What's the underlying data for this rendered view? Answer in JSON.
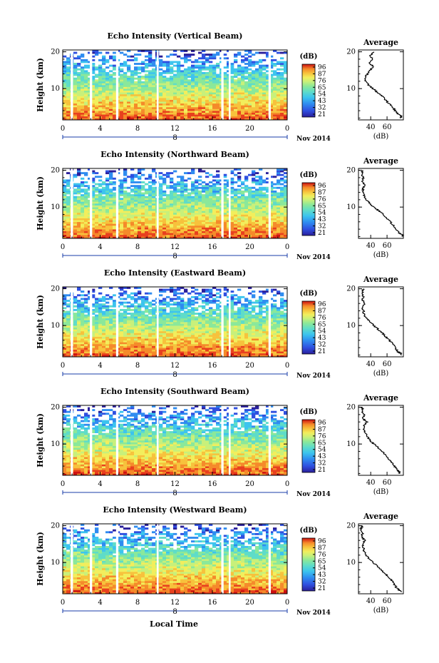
{
  "figure": {
    "x_label": "Local Time",
    "date_label": "Nov 2014",
    "y_label": "Height (km)",
    "colorbar_unit": "(dB)",
    "profile_title": "Average",
    "profile_xlabel": "(dB)"
  },
  "chart_data": [
    {
      "type": "heatmap",
      "title": "Echo Intensity (Vertical Beam)",
      "xlabel": "Local Time",
      "ylabel": "Height (km)",
      "x_ticks": [
        "0",
        "4",
        "8",
        "12",
        "16",
        "20",
        "0"
      ],
      "day_marker": "8",
      "y_ticks": [
        "10",
        "20"
      ],
      "xlim": [
        0,
        24
      ],
      "ylim": [
        1.5,
        20.5
      ],
      "colorbar": {
        "unit": "(dB)",
        "ticks": [
          "96",
          "87",
          "76",
          "65",
          "54",
          "43",
          "32",
          "21"
        ]
      },
      "data_gaps_hours": [
        [
          0.85,
          1.1
        ],
        [
          2.9,
          3.15
        ],
        [
          5.7,
          5.95
        ],
        [
          10.05,
          10.25
        ],
        [
          16.95,
          17.2
        ],
        [
          17.75,
          17.95
        ],
        [
          22.0,
          22.25
        ]
      ],
      "profile": {
        "title": "Average",
        "xlabel": "(dB)",
        "x_ticks": [
          "40",
          "60"
        ],
        "y_ticks": [
          "10",
          "20"
        ],
        "xlim": [
          25,
          80
        ],
        "ylim": [
          1.5,
          20.5
        ],
        "height_km": [
          2,
          2.5,
          3,
          4,
          5,
          6,
          7,
          8,
          9,
          10,
          11,
          12,
          13,
          14,
          15,
          16,
          17,
          18,
          19,
          20
        ],
        "db": [
          76,
          78,
          74,
          70,
          67,
          62,
          58,
          54,
          48,
          43,
          37,
          34,
          33,
          36,
          39,
          43,
          38,
          42,
          40,
          44
        ]
      }
    },
    {
      "type": "heatmap",
      "title": "Echo Intensity (Northward Beam)",
      "xlabel": "Local Time",
      "ylabel": "Height (km)",
      "x_ticks": [
        "0",
        "4",
        "8",
        "12",
        "16",
        "20",
        "0"
      ],
      "day_marker": "8",
      "y_ticks": [
        "10",
        "20"
      ],
      "xlim": [
        0,
        24
      ],
      "ylim": [
        1.5,
        20.5
      ],
      "colorbar": {
        "unit": "(dB)",
        "ticks": [
          "96",
          "87",
          "76",
          "65",
          "54",
          "43",
          "32",
          "21"
        ]
      },
      "data_gaps_hours": [
        [
          0.85,
          1.1
        ],
        [
          2.9,
          3.15
        ],
        [
          5.7,
          5.95
        ],
        [
          10.05,
          10.25
        ],
        [
          16.95,
          17.2
        ],
        [
          17.75,
          17.95
        ],
        [
          22.0,
          22.25
        ]
      ],
      "profile": {
        "title": "Average",
        "xlabel": "(dB)",
        "x_ticks": [
          "40",
          "60"
        ],
        "y_ticks": [
          "10",
          "20"
        ],
        "xlim": [
          25,
          80
        ],
        "ylim": [
          1.5,
          20.5
        ],
        "height_km": [
          2,
          2.5,
          3,
          4,
          5,
          6,
          7,
          8,
          9,
          10,
          11,
          12,
          13,
          14,
          15,
          16,
          17,
          18,
          19,
          20
        ],
        "db": [
          80,
          78,
          75,
          71,
          68,
          64,
          59,
          55,
          50,
          44,
          39,
          35,
          32,
          31,
          30,
          33,
          29,
          31,
          29,
          30
        ]
      }
    },
    {
      "type": "heatmap",
      "title": "Echo Intensity (Eastward Beam)",
      "xlabel": "Local Time",
      "ylabel": "Height (km)",
      "x_ticks": [
        "0",
        "4",
        "8",
        "12",
        "16",
        "20",
        "0"
      ],
      "day_marker": "8",
      "y_ticks": [
        "10",
        "20"
      ],
      "xlim": [
        0,
        24
      ],
      "ylim": [
        1.5,
        20.5
      ],
      "colorbar": {
        "unit": "(dB)",
        "ticks": [
          "96",
          "87",
          "76",
          "65",
          "54",
          "43",
          "32",
          "21"
        ]
      },
      "data_gaps_hours": [
        [
          0.85,
          1.1
        ],
        [
          2.9,
          3.15
        ],
        [
          5.7,
          5.95
        ],
        [
          10.05,
          10.25
        ],
        [
          16.95,
          17.2
        ],
        [
          17.75,
          17.95
        ],
        [
          22.0,
          22.25
        ]
      ],
      "profile": {
        "title": "Average",
        "xlabel": "(dB)",
        "x_ticks": [
          "40",
          "60"
        ],
        "y_ticks": [
          "10",
          "20"
        ],
        "xlim": [
          25,
          80
        ],
        "ylim": [
          1.5,
          20.5
        ],
        "height_km": [
          2,
          2.5,
          3,
          4,
          5,
          6,
          7,
          8,
          9,
          10,
          11,
          12,
          13,
          14,
          15,
          16,
          17,
          18,
          19,
          20
        ],
        "db": [
          78,
          76,
          73,
          70,
          67,
          63,
          58,
          54,
          49,
          44,
          39,
          35,
          32,
          31,
          30,
          33,
          30,
          31,
          30,
          31
        ]
      }
    },
    {
      "type": "heatmap",
      "title": "Echo Intensity (Southward Beam)",
      "xlabel": "Local Time",
      "ylabel": "Height (km)",
      "x_ticks": [
        "0",
        "4",
        "8",
        "12",
        "16",
        "20",
        "0"
      ],
      "day_marker": "8",
      "y_ticks": [
        "10",
        "20"
      ],
      "xlim": [
        0,
        24
      ],
      "ylim": [
        1.5,
        20.5
      ],
      "colorbar": {
        "unit": "(dB)",
        "ticks": [
          "96",
          "87",
          "76",
          "65",
          "54",
          "43",
          "32",
          "21"
        ]
      },
      "data_gaps_hours": [
        [
          0.85,
          1.1
        ],
        [
          2.9,
          3.15
        ],
        [
          5.7,
          5.95
        ],
        [
          10.05,
          10.25
        ],
        [
          16.95,
          17.2
        ],
        [
          17.75,
          17.95
        ],
        [
          22.0,
          22.25
        ]
      ],
      "profile": {
        "title": "Average",
        "xlabel": "(dB)",
        "x_ticks": [
          "40",
          "60"
        ],
        "y_ticks": [
          "10",
          "20"
        ],
        "xlim": [
          25,
          80
        ],
        "ylim": [
          1.5,
          20.5
        ],
        "height_km": [
          2,
          2.5,
          3,
          4,
          5,
          6,
          7,
          8,
          9,
          10,
          11,
          12,
          13,
          14,
          15,
          16,
          17,
          18,
          19,
          20
        ],
        "db": [
          76,
          75,
          72,
          69,
          66,
          62,
          58,
          54,
          49,
          44,
          39,
          36,
          33,
          32,
          31,
          35,
          30,
          32,
          29,
          30
        ]
      }
    },
    {
      "type": "heatmap",
      "title": "Echo Intensity (Westward Beam)",
      "xlabel": "Local Time",
      "ylabel": "Height (km)",
      "x_ticks": [
        "0",
        "4",
        "8",
        "12",
        "16",
        "20",
        "0"
      ],
      "day_marker": "8",
      "y_ticks": [
        "10",
        "20"
      ],
      "xlim": [
        0,
        24
      ],
      "ylim": [
        1.5,
        20.5
      ],
      "colorbar": {
        "unit": "(dB)",
        "ticks": [
          "96",
          "87",
          "76",
          "65",
          "54",
          "43",
          "32",
          "21"
        ]
      },
      "data_gaps_hours": [
        [
          0.85,
          1.1
        ],
        [
          2.9,
          3.15
        ],
        [
          5.7,
          5.95
        ],
        [
          10.05,
          10.25
        ],
        [
          16.95,
          17.2
        ],
        [
          17.75,
          17.95
        ],
        [
          22.0,
          22.25
        ]
      ],
      "profile": {
        "title": "Average",
        "xlabel": "(dB)",
        "x_ticks": [
          "40",
          "60"
        ],
        "y_ticks": [
          "10",
          "20"
        ],
        "xlim": [
          25,
          80
        ],
        "ylim": [
          1.5,
          20.5
        ],
        "height_km": [
          2,
          2.5,
          3,
          4,
          5,
          6,
          7,
          8,
          9,
          10,
          11,
          12,
          13,
          14,
          15,
          16,
          17,
          18,
          19,
          20
        ],
        "db": [
          77,
          75,
          72,
          69,
          66,
          62,
          58,
          53,
          48,
          43,
          38,
          34,
          32,
          31,
          30,
          33,
          29,
          30,
          28,
          30
        ]
      }
    }
  ],
  "colors": {
    "colormap": [
      "#2a1f9a",
      "#2f4fe0",
      "#2f8cf0",
      "#3cc4ee",
      "#5fdcc8",
      "#8ae89a",
      "#c8f07a",
      "#f2ee5c",
      "#f7c23c",
      "#f58a2a",
      "#e8401e",
      "#cc1010"
    ],
    "gap": "#ffffff",
    "axis": "#000000"
  }
}
